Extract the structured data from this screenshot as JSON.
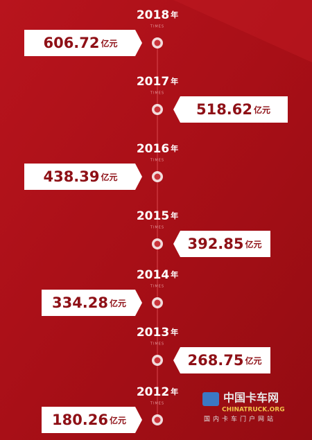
{
  "items": [
    {
      "year": "2018",
      "year_unit": "年",
      "sub": "TIMES",
      "value": "606.72",
      "unit": "亿元"
    },
    {
      "year": "2017",
      "year_unit": "年",
      "sub": "TIMES",
      "value": "518.62",
      "unit": "亿元"
    },
    {
      "year": "2016",
      "year_unit": "年",
      "sub": "TIMES",
      "value": "438.39",
      "unit": "亿元"
    },
    {
      "year": "2015",
      "year_unit": "年",
      "sub": "TIMES",
      "value": "392.85",
      "unit": "亿元"
    },
    {
      "year": "2014",
      "year_unit": "年",
      "sub": "TIMES",
      "value": "334.28",
      "unit": "亿元"
    },
    {
      "year": "2013",
      "year_unit": "年",
      "sub": "TIMES",
      "value": "268.75",
      "unit": "亿元"
    },
    {
      "year": "2012",
      "year_unit": "年",
      "sub": "TIMES",
      "value": "180.26",
      "unit": "亿元"
    }
  ],
  "watermark": {
    "name": "中国卡车网",
    "domain": "CHINATRUCK.ORG",
    "slogan": "国内卡车门户网站"
  }
}
